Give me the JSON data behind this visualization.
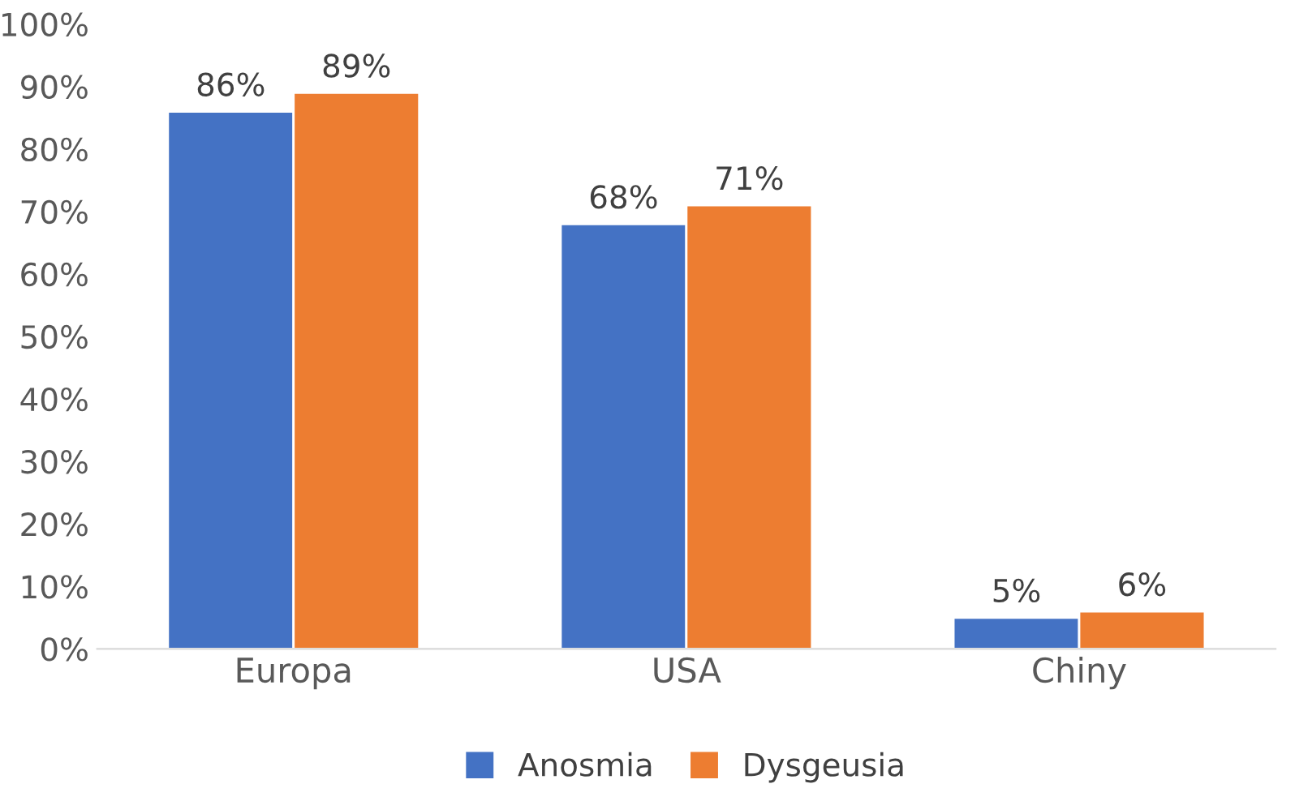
{
  "chart_data": {
    "type": "bar",
    "categories": [
      "Europa",
      "USA",
      "Chiny"
    ],
    "series": [
      {
        "name": "Anosmia",
        "color": "#4472c4",
        "values": [
          86,
          68,
          5
        ],
        "value_labels": [
          "86%",
          "68%",
          "5%"
        ]
      },
      {
        "name": "Dysgeusia",
        "color": "#ed7d31",
        "values": [
          89,
          71,
          6
        ],
        "value_labels": [
          "89%",
          "71%",
          "6%"
        ]
      }
    ],
    "ylim": [
      0,
      100
    ],
    "yticks": [
      {
        "value": 0,
        "label": "0%"
      },
      {
        "value": 10,
        "label": "10%"
      },
      {
        "value": 20,
        "label": "20%"
      },
      {
        "value": 30,
        "label": "30%"
      },
      {
        "value": 40,
        "label": "40%"
      },
      {
        "value": 50,
        "label": "50%"
      },
      {
        "value": 60,
        "label": "60%"
      },
      {
        "value": 70,
        "label": "70%"
      },
      {
        "value": 80,
        "label": "80%"
      },
      {
        "value": 90,
        "label": "90%"
      },
      {
        "value": 100,
        "label": "100%"
      }
    ],
    "grid": false,
    "legend": "bottom"
  }
}
